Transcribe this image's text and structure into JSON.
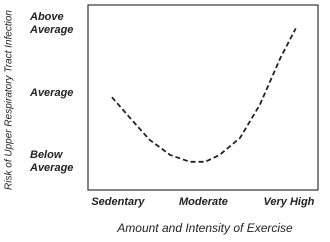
{
  "chart_data": {
    "type": "line",
    "x_label": "Amount and Intensity of Exercise",
    "y_label": "Risk of Upper Respiratory Tract Infection",
    "x": [
      -0.07,
      0.14,
      0.37,
      0.61,
      0.84,
      1.02,
      1.19,
      1.43,
      1.66,
      1.9,
      2.08
    ],
    "values": [
      0.94,
      0.64,
      0.32,
      0.1,
      0.0,
      0.0,
      0.1,
      0.35,
      0.83,
      1.51,
      1.94
    ],
    "color": "#222222",
    "xlim": [
      -0.35,
      2.34
    ],
    "xticks": [
      {
        "value": 0,
        "label": "Sedentary"
      },
      {
        "value": 1,
        "label": "Moderate"
      },
      {
        "value": 2,
        "label": "Very High"
      }
    ],
    "ylim": [
      -0.41,
      2.28
    ],
    "yticks": [
      {
        "value": 0,
        "label": "Below Average"
      },
      {
        "value": 1,
        "label": "Average"
      },
      {
        "value": 2,
        "label": "Above Average"
      }
    ],
    "grid": false
  }
}
